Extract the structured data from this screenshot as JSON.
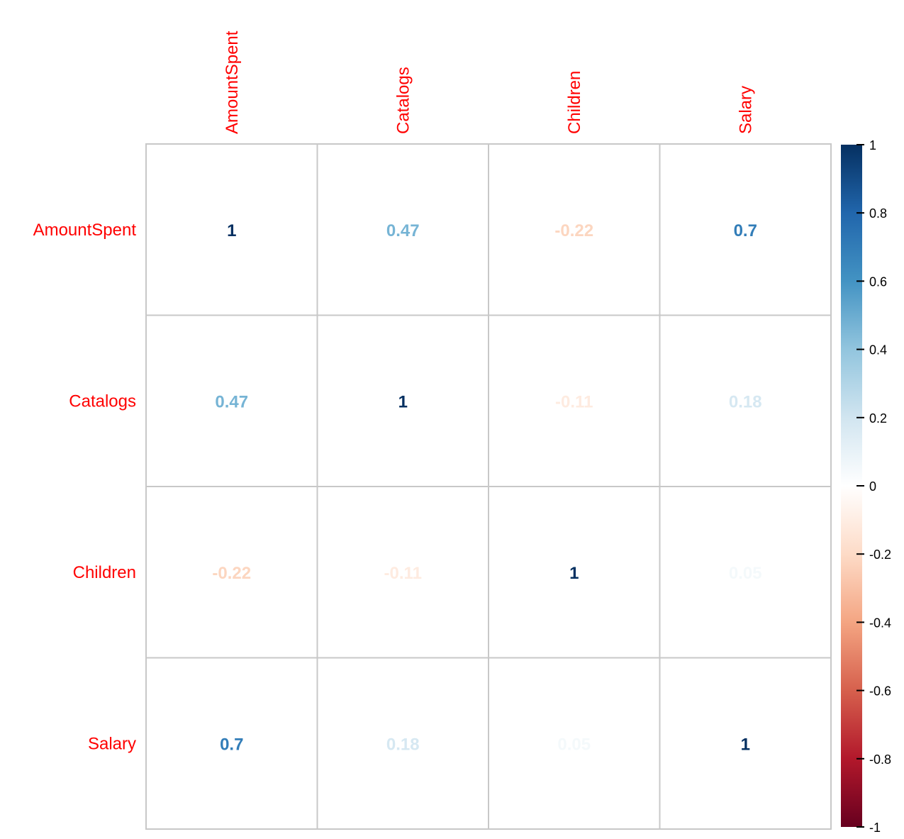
{
  "chart_data": {
    "type": "heatmap",
    "variables": [
      "AmountSpent",
      "Catalogs",
      "Children",
      "Salary"
    ],
    "matrix": [
      [
        1,
        0.47,
        -0.22,
        0.7
      ],
      [
        0.47,
        1,
        -0.11,
        0.18
      ],
      [
        -0.22,
        -0.11,
        1,
        0.05
      ],
      [
        0.7,
        0.18,
        0.05,
        1
      ]
    ],
    "matrix_text": [
      [
        "1",
        "0.47",
        "-0.22",
        "0.7"
      ],
      [
        "0.47",
        "1",
        "-0.11",
        "0.18"
      ],
      [
        "-0.22",
        "-0.11",
        "1",
        "0.05"
      ],
      [
        "0.7",
        "0.18",
        "0.05",
        "1"
      ]
    ],
    "colorbar": {
      "range": [
        -1,
        1
      ],
      "ticks": [
        1,
        0.8,
        0.6,
        0.4,
        0.2,
        0,
        -0.2,
        -0.4,
        -0.6,
        -0.8,
        -1
      ],
      "tick_labels": [
        "1",
        "0.8",
        "0.6",
        "0.4",
        "0.2",
        "0",
        "-0.2",
        "-0.4",
        "-0.6",
        "-0.8",
        "-1"
      ],
      "colors": [
        "#67001f",
        "#b2182b",
        "#d6604d",
        "#f4a582",
        "#fddbc7",
        "#ffffff",
        "#d1e5f0",
        "#92c5de",
        "#4393c3",
        "#2166ac",
        "#053061"
      ]
    },
    "label_color": "#ff0000",
    "grid": true,
    "legend": "right"
  }
}
